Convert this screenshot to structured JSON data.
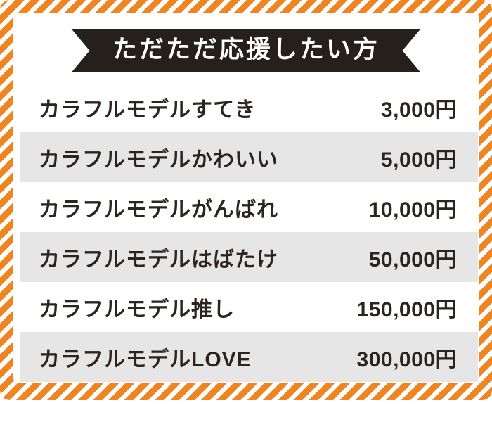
{
  "banner": {
    "title": "ただただ応援したい方"
  },
  "rows": [
    {
      "label": "カラフルモデルすてき",
      "price": "3,000円"
    },
    {
      "label": "カラフルモデルかわいい",
      "price": "5,000円"
    },
    {
      "label": "カラフルモデルがんばれ",
      "price": "10,000円"
    },
    {
      "label": "カラフルモデルはばたけ",
      "price": "50,000円"
    },
    {
      "label": "カラフルモデル推し",
      "price": "150,000円"
    },
    {
      "label": "カラフルモデルLOVE",
      "price": "300,000円"
    }
  ],
  "colors": {
    "stripe_orange": "#ee8520",
    "row_alt_gray": "#e6e6e7",
    "ribbon_black": "#26201d",
    "text_dark": "#2b2420",
    "background": "#ffffff"
  }
}
